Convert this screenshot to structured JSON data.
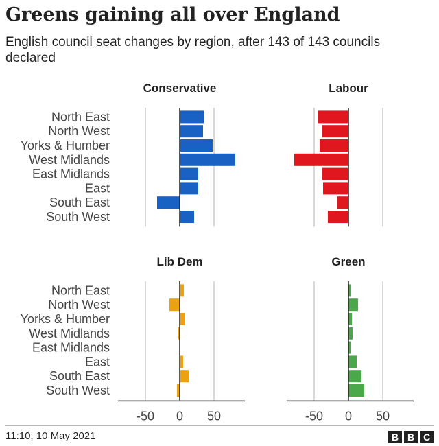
{
  "header": {
    "title": "Greens gaining all over England",
    "subtitle": "English council seat changes by region, after 143 of 143 councils declared"
  },
  "chart_data": {
    "type": "bar",
    "orientation": "horizontal",
    "categories": [
      "North East",
      "North West",
      "Yorks & Humber",
      "West Midlands",
      "East Midlands",
      "East",
      "South East",
      "South West"
    ],
    "xlim": [
      -90,
      95
    ],
    "xticks": [
      -50,
      0,
      50
    ],
    "xtick_labels": [
      "-50",
      "0",
      "50"
    ],
    "grid": true,
    "panels": [
      {
        "name": "Conservative",
        "color": "#1961c3",
        "values": [
          35,
          34,
          48,
          81,
          27,
          27,
          -33,
          21
        ]
      },
      {
        "name": "Labour",
        "color": "#e0171f",
        "values": [
          -44,
          -38,
          -42,
          -79,
          -38,
          -37,
          -17,
          -30
        ]
      },
      {
        "name": "Lib Dem",
        "color": "#eaa213",
        "values": [
          6,
          -15,
          7,
          -2,
          0,
          5,
          13,
          -4
        ]
      },
      {
        "name": "Green",
        "color": "#4aa84b",
        "values": [
          4,
          14,
          5,
          6,
          3,
          12,
          19,
          23
        ]
      }
    ]
  },
  "footer": {
    "timestamp": "11:10, 10 May 2021",
    "logo_letters": [
      "B",
      "B",
      "C"
    ]
  }
}
